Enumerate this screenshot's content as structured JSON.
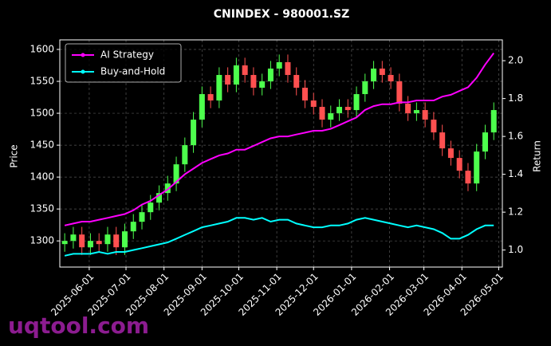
{
  "chart_data": {
    "type": "candlestick",
    "title": "CNINDEX - 980001.SZ",
    "ylabel": "Price",
    "y2label": "Return",
    "watermark": "uqtool.com",
    "x": [
      "2025-05-12",
      "2025-05-19",
      "2025-05-26",
      "2025-06-02",
      "2025-06-09",
      "2025-06-16",
      "2025-06-23",
      "2025-06-30",
      "2025-07-07",
      "2025-07-14",
      "2025-07-21",
      "2025-07-28",
      "2025-08-04",
      "2025-08-11",
      "2025-08-18",
      "2025-08-25",
      "2025-09-01",
      "2025-09-08",
      "2025-09-15",
      "2025-09-22",
      "2025-09-29",
      "2025-10-06",
      "2025-10-13",
      "2025-10-20",
      "2025-10-27",
      "2025-11-03",
      "2025-11-10",
      "2025-11-17",
      "2025-11-24",
      "2025-12-01",
      "2025-12-08",
      "2025-12-15",
      "2025-12-22",
      "2025-12-29",
      "2026-01-05",
      "2026-01-12",
      "2026-01-19",
      "2026-01-26",
      "2026-02-02",
      "2026-02-09",
      "2026-02-16",
      "2026-02-23",
      "2026-03-02",
      "2026-03-09",
      "2026-03-16",
      "2026-03-23",
      "2026-03-30",
      "2026-04-06",
      "2026-04-13",
      "2026-04-20",
      "2026-04-27"
    ],
    "open": [
      1295,
      1300,
      1310,
      1290,
      1300,
      1295,
      1310,
      1290,
      1315,
      1330,
      1345,
      1360,
      1375,
      1390,
      1420,
      1450,
      1490,
      1530,
      1520,
      1560,
      1545,
      1575,
      1560,
      1540,
      1550,
      1570,
      1580,
      1560,
      1540,
      1520,
      1510,
      1490,
      1500,
      1510,
      1505,
      1530,
      1550,
      1570,
      1560,
      1550,
      1515,
      1500,
      1505,
      1490,
      1470,
      1445,
      1430,
      1410,
      1390,
      1440,
      1470
    ],
    "high": [
      1312,
      1322,
      1322,
      1312,
      1312,
      1322,
      1322,
      1327,
      1342,
      1357,
      1372,
      1387,
      1402,
      1432,
      1462,
      1502,
      1542,
      1542,
      1572,
      1572,
      1587,
      1587,
      1572,
      1562,
      1582,
      1592,
      1592,
      1572,
      1552,
      1532,
      1522,
      1512,
      1522,
      1522,
      1542,
      1562,
      1582,
      1582,
      1572,
      1562,
      1527,
      1517,
      1517,
      1502,
      1482,
      1457,
      1442,
      1422,
      1452,
      1482,
      1517
    ],
    "low": [
      1283,
      1288,
      1278,
      1278,
      1283,
      1283,
      1278,
      1278,
      1303,
      1318,
      1333,
      1348,
      1363,
      1378,
      1408,
      1438,
      1478,
      1508,
      1508,
      1533,
      1533,
      1548,
      1528,
      1528,
      1538,
      1558,
      1548,
      1528,
      1508,
      1498,
      1478,
      1478,
      1488,
      1493,
      1493,
      1518,
      1538,
      1548,
      1538,
      1503,
      1488,
      1488,
      1478,
      1458,
      1433,
      1418,
      1398,
      1378,
      1378,
      1428,
      1458
    ],
    "close": [
      1300,
      1310,
      1290,
      1300,
      1295,
      1310,
      1290,
      1315,
      1330,
      1345,
      1360,
      1375,
      1390,
      1420,
      1450,
      1490,
      1530,
      1520,
      1560,
      1545,
      1575,
      1560,
      1540,
      1550,
      1570,
      1580,
      1560,
      1540,
      1520,
      1510,
      1490,
      1500,
      1510,
      1505,
      1530,
      1550,
      1570,
      1560,
      1550,
      1515,
      1500,
      1505,
      1490,
      1470,
      1445,
      1430,
      1410,
      1390,
      1440,
      1470,
      1505
    ],
    "up_color": "#4dff4d",
    "down_color": "#ff5050",
    "series": [
      {
        "name": "AI Strategy",
        "color": "#ff00ff",
        "axis": "y2",
        "values": [
          1.13,
          1.14,
          1.15,
          1.15,
          1.16,
          1.17,
          1.18,
          1.19,
          1.21,
          1.24,
          1.26,
          1.29,
          1.32,
          1.36,
          1.4,
          1.43,
          1.46,
          1.48,
          1.5,
          1.51,
          1.53,
          1.53,
          1.55,
          1.57,
          1.59,
          1.6,
          1.6,
          1.61,
          1.62,
          1.63,
          1.63,
          1.64,
          1.66,
          1.68,
          1.7,
          1.74,
          1.76,
          1.77,
          1.77,
          1.78,
          1.78,
          1.79,
          1.79,
          1.79,
          1.81,
          1.82,
          1.84,
          1.86,
          1.91,
          1.98,
          2.04
        ]
      },
      {
        "name": "Buy-and-Hold",
        "color": "#00ffff",
        "axis": "y2",
        "values": [
          0.97,
          0.98,
          0.98,
          0.98,
          0.99,
          0.98,
          0.99,
          0.99,
          1.0,
          1.01,
          1.02,
          1.03,
          1.04,
          1.06,
          1.08,
          1.1,
          1.12,
          1.13,
          1.14,
          1.15,
          1.17,
          1.17,
          1.16,
          1.17,
          1.15,
          1.16,
          1.16,
          1.14,
          1.13,
          1.12,
          1.12,
          1.13,
          1.13,
          1.14,
          1.16,
          1.17,
          1.16,
          1.15,
          1.14,
          1.13,
          1.12,
          1.13,
          1.12,
          1.11,
          1.09,
          1.06,
          1.06,
          1.08,
          1.11,
          1.13,
          1.13
        ]
      }
    ],
    "xlim": [
      "2025-05-08",
      "2026-05-04"
    ],
    "xticks": [
      "2025-06-01",
      "2025-07-01",
      "2025-08-01",
      "2025-09-01",
      "2025-10-01",
      "2025-11-01",
      "2025-12-01",
      "2026-01-01",
      "2026-02-01",
      "2026-03-01",
      "2026-04-01",
      "2026-05-01"
    ],
    "ylim": [
      1259,
      1615
    ],
    "yticks": [
      1300,
      1350,
      1400,
      1450,
      1500,
      1550,
      1600
    ],
    "y2lim": [
      0.91,
      2.11
    ],
    "y2ticks": [
      {
        "value": 1,
        "label": "1.0"
      },
      1.2,
      1.4,
      1.6,
      1.8,
      {
        "value": 2,
        "label": "2.0"
      }
    ],
    "grid": true,
    "legend": "upper left"
  }
}
